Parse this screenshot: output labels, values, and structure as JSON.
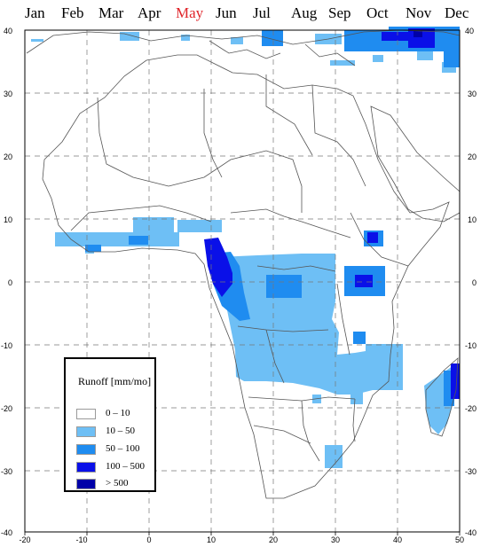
{
  "months": [
    "Jan",
    "Feb",
    "Mar",
    "Apr",
    "May",
    "Jun",
    "Jul",
    "Aug",
    "Sep",
    "Oct",
    "Nov",
    "Dec"
  ],
  "selected_month": "May",
  "axis": {
    "lon_ticks": [
      -20,
      -10,
      0,
      10,
      20,
      30,
      40,
      50
    ],
    "lat_ticks_left": [
      40,
      30,
      20,
      10,
      0,
      -10,
      -20,
      -30,
      -40
    ],
    "lat_ticks_right": [
      40,
      30,
      20,
      10,
      0,
      -10,
      -20,
      -30,
      -40
    ]
  },
  "legend": {
    "title": "Runoff [mm/mo]",
    "items": [
      {
        "label": "0  –  10",
        "color": "#ffffff"
      },
      {
        "label": "10  –  50",
        "color": "#6ebff5"
      },
      {
        "label": "50  –  100",
        "color": "#1f8cf0"
      },
      {
        "label": "100  –  500",
        "color": "#0a10e8"
      },
      {
        "label": "> 500",
        "color": "#0000a8"
      }
    ]
  },
  "colors": {
    "selected_month": "#e0262b",
    "grid": "#777777",
    "coast": "#555555"
  }
}
